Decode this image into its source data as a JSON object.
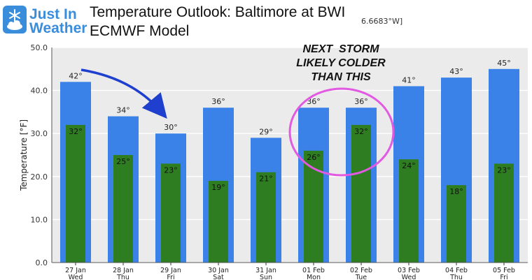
{
  "header": {
    "logo_word_1": "Just In",
    "logo_word_2": "Weather",
    "logo_icon": "snowflake-cloud-icon",
    "title_line_1": "Temperature Outlook: Baltimore at BWI",
    "title_line_2": "ECMWF Model",
    "coord_note": "6.6683°W]"
  },
  "annotation": {
    "lines": [
      "NEXT  STORM",
      "LIKELY COLDER",
      "THAN THIS"
    ],
    "circle_color": "#e259e2",
    "arrow_color": "#1f3fcf"
  },
  "chart_data": {
    "type": "bar",
    "categories": [
      [
        "27 Jan",
        "Wed"
      ],
      [
        "28 Jan",
        "Thu"
      ],
      [
        "29 Jan",
        "Fri"
      ],
      [
        "30 Jan",
        "Sat"
      ],
      [
        "31 Jan",
        "Sun"
      ],
      [
        "01 Feb",
        "Mon"
      ],
      [
        "02 Feb",
        "Tue"
      ],
      [
        "03 Feb",
        "Wed"
      ],
      [
        "04 Feb",
        "Thu"
      ],
      [
        "05 Feb",
        "Fri"
      ]
    ],
    "series": [
      {
        "values": [
          42,
          34,
          30,
          36,
          29,
          36,
          36,
          41,
          43,
          45
        ],
        "color": "#3b82e8",
        "labels": [
          "42°",
          "34°",
          "30°",
          "36°",
          "29°",
          "36°",
          "36°",
          "41°",
          "43°",
          "45°"
        ]
      },
      {
        "values": [
          32,
          25,
          23,
          19,
          21,
          26,
          32,
          24,
          18,
          23
        ],
        "color": "#2e7d21",
        "labels": [
          "32°",
          "25°",
          "23°",
          "19°",
          "21°",
          "26°",
          "32°",
          "24°",
          "18°",
          "23°"
        ]
      }
    ],
    "ylabel": "Temperature [°F]",
    "yticks": [
      0,
      10,
      20,
      30,
      40,
      50
    ],
    "ytick_labels": [
      "0.0",
      "10.0",
      "20.0",
      "30.0",
      "40.0",
      "50.0"
    ],
    "ylim": [
      0,
      50
    ],
    "grid": "horizontal",
    "background": "#ebebeb"
  }
}
